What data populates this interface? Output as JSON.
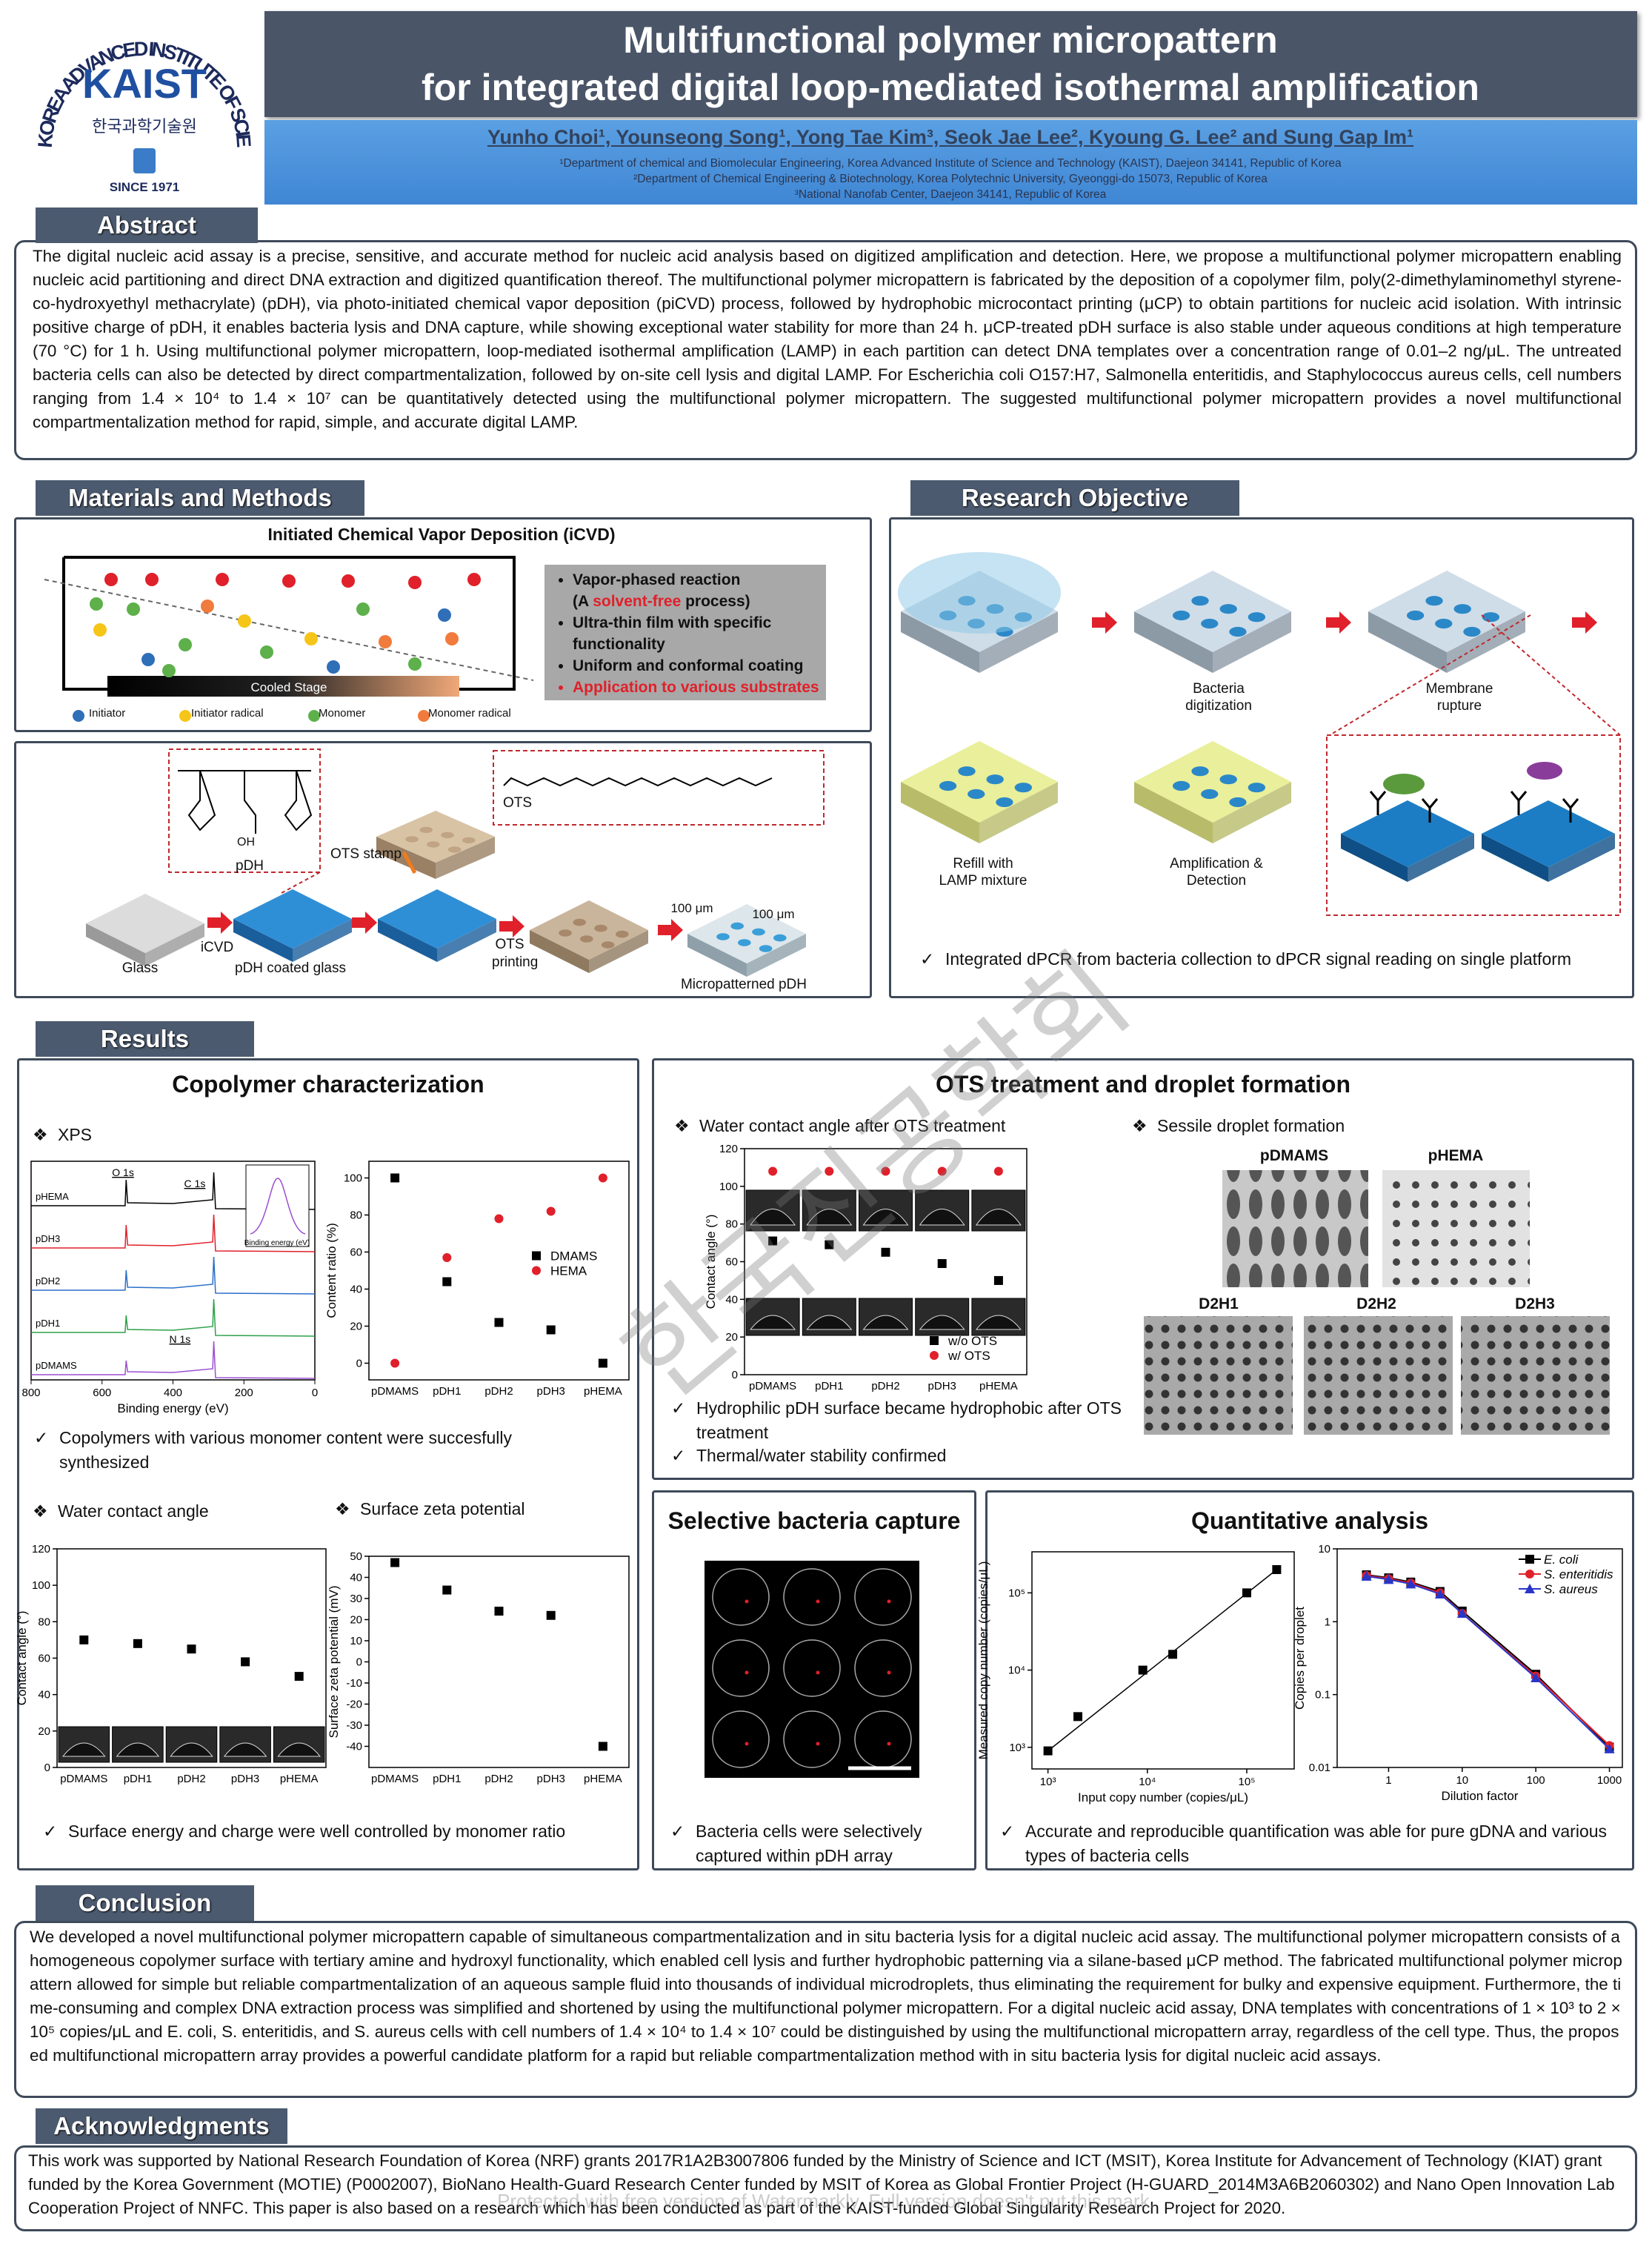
{
  "header": {
    "logo_ring": "KOREA ADVANCED INSTITUTE OF SCIENCE AND TECHNOLOGY",
    "logo_name": "KAIST",
    "logo_korean": "한국과학기술원",
    "logo_since": "SINCE 1971",
    "title_line1": "Multifunctional polymer micropattern",
    "title_line2": "for integrated digital loop-mediated isothermal amplification",
    "authors": "Yunho Choi¹, Younseong Song¹, Yong Tae Kim³, Seok Jae Lee², Kyoung G. Lee² and Sung Gap Im¹",
    "affiliations": [
      "¹Department of chemical and Biomolecular Engineering, Korea Advanced Institute of Science and Technology (KAIST), Daejeon 34141, Republic of Korea",
      "²Department of Chemical Engineering & Biotechnology, Korea Polytechnic University, Gyeonggi-do 15073, Republic of Korea",
      "³National Nanofab Center, Daejeon 34141, Republic of Korea"
    ]
  },
  "abstract": {
    "heading": "Abstract",
    "text": "The digital nucleic acid assay is a precise, sensitive, and accurate method for nucleic acid analysis based on digitized amplification and detection. Here, we propose a multifunctional polymer micropattern enabling nucleic acid partitioning and direct DNA extraction and digitized quantification thereof. The multifunctional polymer micropattern is fabricated by the deposition of a copolymer film, poly(2-dimethylaminomethyl styrene-co-hydroxyethyl methacrylate) (pDH), via photo-initiated chemical vapor deposition (piCVD) process, followed by hydrophobic microcontact printing (μCP) to obtain partitions for nucleic acid isolation. With intrinsic positive charge of pDH, it enables bacteria lysis and DNA capture, while showing exceptional water stability for more than 24 h. μCP-treated pDH surface is also stable under aqueous conditions at high temperature (70 °C) for 1 h. Using multifunctional polymer micropattern, loop-mediated isothermal amplification (LAMP) in each partition can detect DNA templates over a concentration range of 0.01–2 ng/μL. The untreated bacteria cells can also be detected by direct compartmentalization, followed by on-site cell lysis and digital LAMP. For Escherichia coli O157:H7, Salmonella enteritidis, and Staphylococcus aureus cells, cell numbers ranging from 1.4 × 10⁴ to 1.4 × 10⁷  can be quantitatively detected using the multifunctional polymer micropattern. The suggested multifunctional polymer micropattern provides a novel multifunctional compartmentalization method for rapid, simple, and accurate digital LAMP."
  },
  "methods": {
    "heading": "Materials and Methods",
    "icvd_title": "Initiated Chemical Vapor Deposition (iCVD)",
    "stage": "Cooled Stage",
    "legend": [
      "Initiator",
      "Initiator radical",
      "Monomer",
      "Monomer radical"
    ],
    "bullet1": "Vapor-phased reaction",
    "bullet1b_pre": "(A ",
    "bullet1b_red": "solvent-free",
    "bullet1b_post": " process)",
    "bullet2": "Ultra-thin film with specific functionality",
    "bullet3": "Uniform and conformal coating",
    "bullet4": "Application to various substrates",
    "ots": "OTS",
    "oh": "OH",
    "pdh": "pDH",
    "ots_stamp": "OTS stamp",
    "glass": "Glass",
    "icvd": "iCVD",
    "pdh_glass": "pDH coated glass",
    "ots_printing": "OTS printing",
    "scale1": "100 μm",
    "scale2": "100 μm",
    "micropatterned": "Micropatterned pDH"
  },
  "objective": {
    "heading": "Research Objective",
    "step2": "Bacteria digitization",
    "step3": "Membrane rupture",
    "step4": "Refill with LAMP mixture",
    "step5": "Amplification & Detection",
    "check": "Integrated dPCR from bacteria collection to dPCR signal reading on single platform"
  },
  "results": {
    "heading": "Results",
    "copolymer": {
      "title": "Copolymer characterization",
      "xps_label": "XPS",
      "xps": {
        "xticks": [
          800,
          600,
          400,
          200,
          0
        ],
        "xlim": [
          800,
          0
        ],
        "xlabel": "Binding energy (eV)",
        "samples": [
          "pHEMA",
          "pDH3",
          "pDH2",
          "pDH1",
          "pDMAMS"
        ],
        "peaks": [
          "O 1s",
          "C 1s",
          "N 1s"
        ],
        "inset_xlabel": "Binding energy (eV)"
      },
      "content_ratio": {
        "type": "scatter",
        "categories": [
          "pDMAMS",
          "pDH1",
          "pDH2",
          "pDH3",
          "pHEMA"
        ],
        "ylabel": "Content ratio (%)",
        "ylim": [
          -9,
          109
        ],
        "yticks": [
          0,
          20,
          40,
          60,
          80,
          100
        ],
        "legend": "center right",
        "series": [
          {
            "name": "DMAMS",
            "color": "#000000",
            "marker": "square",
            "values": [
              100,
              44,
              22,
              18,
              0
            ]
          },
          {
            "name": "HEMA",
            "color": "#e0202a",
            "marker": "circle",
            "values": [
              0,
              57,
              78,
              82,
              100
            ]
          }
        ]
      },
      "check1": "Copolymers with various monomer content were succesfully synthesized",
      "wca_label": "Water contact angle",
      "wca": {
        "type": "scatter",
        "categories": [
          "pDMAMS",
          "pDH1",
          "pDH2",
          "pDH3",
          "pHEMA"
        ],
        "ylabel": "Contact angle (°)",
        "ylim": [
          0,
          120
        ],
        "yticks": [
          0,
          20,
          40,
          60,
          80,
          100,
          120
        ],
        "color": "#000000",
        "marker": "square",
        "values": [
          70,
          68,
          65,
          58,
          50
        ]
      },
      "zeta_label": "Surface zeta potential",
      "zeta": {
        "type": "scatter",
        "categories": [
          "pDMAMS",
          "pDH1",
          "pDH2",
          "pDH3",
          "pHEMA"
        ],
        "ylabel": "Surface zeta potential (mV)",
        "ylim": [
          -50,
          50
        ],
        "yticks": [
          -40,
          -30,
          -20,
          -10,
          0,
          10,
          20,
          30,
          40,
          50
        ],
        "color": "#000000",
        "marker": "square",
        "values": [
          47,
          34,
          24,
          22,
          -40
        ]
      },
      "check2": "Surface energy and charge were well controlled by monomer ratio"
    },
    "ots": {
      "title": "OTS treatment and droplet formation",
      "wca_label": "Water contact angle after OTS treatment",
      "wca": {
        "type": "scatter",
        "categories": [
          "pDMAMS",
          "pDH1",
          "pDH2",
          "pDH3",
          "pHEMA"
        ],
        "ylabel": "Contact angle (°)",
        "ylim": [
          0,
          120
        ],
        "yticks": [
          0,
          20,
          40,
          60,
          80,
          100,
          120
        ],
        "legend": "lower right",
        "series": [
          {
            "name": "w/o OTS",
            "color": "#000000",
            "marker": "square",
            "values": [
              71,
              69,
              65,
              59,
              50
            ]
          },
          {
            "name": "w/ OTS",
            "color": "#e0202a",
            "marker": "circle",
            "values": [
              108,
              108,
              108,
              108,
              108
            ]
          }
        ]
      },
      "sessile_label": "Sessile droplet formation",
      "photos": [
        "pDMAMS",
        "pHEMA",
        "D2H1",
        "D2H2",
        "D2H3"
      ],
      "check1": "Hydrophilic pDH surface became hydrophobic after OTS treatment",
      "check2": "Thermal/water stability confirmed"
    },
    "selective": {
      "title": "Selective bacteria capture",
      "check": "Bacteria cells were selectively captured within pDH array"
    },
    "quant": {
      "title": "Quantitative analysis",
      "calibration": {
        "type": "scatter",
        "xlog": true,
        "ylog": true,
        "xlim": [
          690,
          300000
        ],
        "ylim": [
          525,
          340000
        ],
        "xticks": [
          {
            "value": 1000,
            "label": "10³"
          },
          {
            "value": 10000,
            "label": "10⁴"
          },
          {
            "value": 100000,
            "label": "10⁵"
          }
        ],
        "yticks": [
          {
            "value": 1000,
            "label": "10³"
          },
          {
            "value": 10000,
            "label": "10⁴"
          },
          {
            "value": 100000,
            "label": "10⁵"
          }
        ],
        "xlabel": "Input copy number (copies/μL)",
        "ylabel": "Measured copy number (copies/μL)",
        "color": "#000000",
        "marker": "square",
        "x": [
          1000,
          2000,
          9000,
          18000,
          100000,
          200000
        ],
        "values": [
          900,
          2500,
          10000,
          16000,
          100000,
          200000
        ]
      },
      "dilution": {
        "type": "line",
        "xlog": true,
        "ylog": true,
        "xlim": [
          0.2,
          1500
        ],
        "ylim": [
          0.01,
          10
        ],
        "xticks": [
          1,
          10,
          100,
          1000
        ],
        "yticks": [
          0.01,
          0.1,
          1,
          10
        ],
        "xlabel": "Dilution factor",
        "ylabel": "Copies per droplet",
        "legend": "upper right",
        "x": [
          0.5,
          1,
          2,
          5,
          10,
          100,
          1000
        ],
        "series": [
          {
            "name": "E. coli",
            "color": "#000000",
            "marker": "square",
            "values": [
              4.4,
              4.0,
              3.5,
              2.6,
              1.4,
              0.19,
              0.019
            ]
          },
          {
            "name": "S. enteritidis",
            "color": "#e0202a",
            "marker": "circle",
            "values": [
              4.3,
              3.9,
              3.4,
              2.5,
              1.3,
              0.18,
              0.02
            ]
          },
          {
            "name": "S. aureus",
            "color": "#2a35c8",
            "marker": "triangle",
            "values": [
              4.2,
              3.8,
              3.3,
              2.4,
              1.3,
              0.17,
              0.018
            ]
          }
        ]
      },
      "check": "Accurate and reproducible quantification was able for pure gDNA and various types of bacteria cells"
    }
  },
  "conclusion": {
    "heading": "Conclusion",
    "text": "We developed a novel multifunctional polymer micropattern capable of simultaneous compartmentalization and in situ bacteria lysis for a digital nucleic acid assay. The multifunctional polymer micropattern consists of a homogeneous copolymer surface with tertiary amine and hydroxyl functionality, which enabled cell lysis and further hydrophobic patterning via a silane-based μCP method. The fabricated multifunctional polymer micropattern allowed for simple but reliable compartmentalization of an aqueous sample fluid into thousands of individual microdroplets, thus eliminating the requirement for bulky and expensive equipment. Furthermore, the time-consuming and complex DNA extraction process was simplified and shortened by using the multifunctional polymer micropattern. For a digital nucleic acid assay, DNA templates with concentrations of 1 × 10³ to 2 × 10⁵ copies/μL and E. coli, S. enteritidis, and S. aureus cells with cell numbers of 1.4 × 10⁴ to 1.4 × 10⁷ could be distinguished by using the multifunctional micropattern array, regardless of the cell type. Thus, the proposed multifunctional micropattern array provides a powerful candidate platform for a rapid but reliable compartmentalization method with in situ bacteria lysis for digital nucleic acid assays."
  },
  "acknowledgments": {
    "heading": "Acknowledgments",
    "text": "This work was supported by National Research Foundation of Korea (NRF) grants 2017R1A2B3007806 funded by the Ministry of Science and ICT (MSIT), Korea Institute for Advancement of Technology (KIAT) grant funded by the Korea Government (MOTIE) (P0002007), BioNano Health-Guard Research Center funded by MSIT of Korea as Global Frontier Project (H-GUARD_2014M3A6B2060302) and Nano Open Innovation Lab Cooperation Project of NNFC. This paper is also based on a research which has been conducted as part of the KAIST-funded Global Singularity Research Project for 2020."
  },
  "watermark": {
    "society": "한국진공학회",
    "notice": "Protected with free version of Watermarkly. Full version doesn't put this mark."
  }
}
